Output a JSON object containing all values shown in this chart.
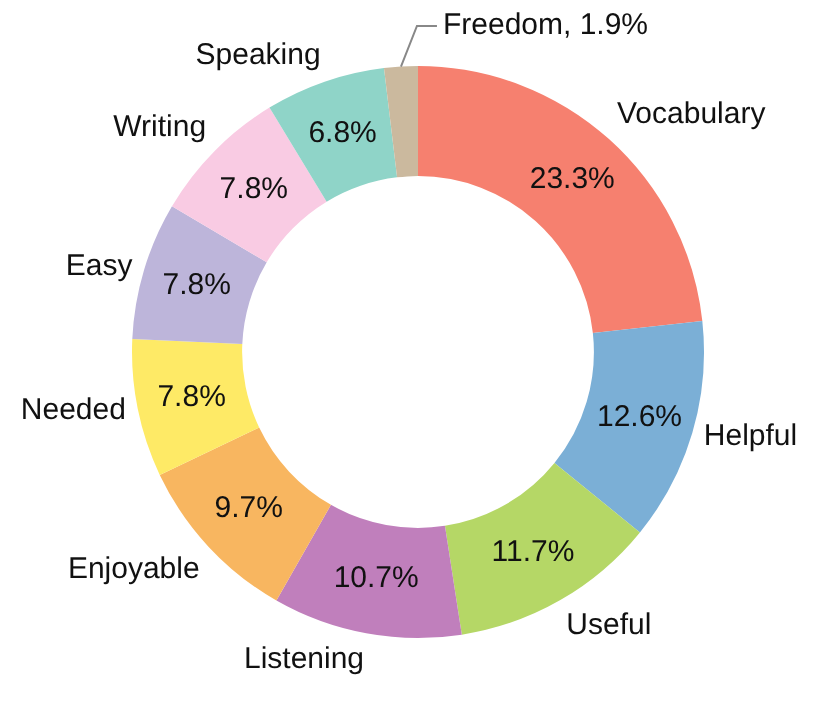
{
  "chart_data": {
    "type": "donut",
    "categories": [
      "Vocabulary",
      "Helpful",
      "Useful",
      "Listening",
      "Enjoyable",
      "Needed",
      "Easy",
      "Writing",
      "Speaking",
      "Freedom"
    ],
    "values": [
      23.3,
      12.6,
      11.7,
      10.7,
      9.7,
      7.8,
      7.8,
      7.8,
      6.8,
      1.9
    ],
    "colors": [
      "#f6806f",
      "#7bafd6",
      "#b5d766",
      "#c07fbc",
      "#f8b660",
      "#feea66",
      "#bdb5da",
      "#f9cbe3",
      "#8fd4c8",
      "#cbb99e"
    ],
    "value_labels": [
      "23.3%",
      "12.6%",
      "11.7%",
      "10.7%",
      "9.7%",
      "7.8%",
      "7.8%",
      "7.8%",
      "6.8%",
      "1.9%"
    ]
  }
}
